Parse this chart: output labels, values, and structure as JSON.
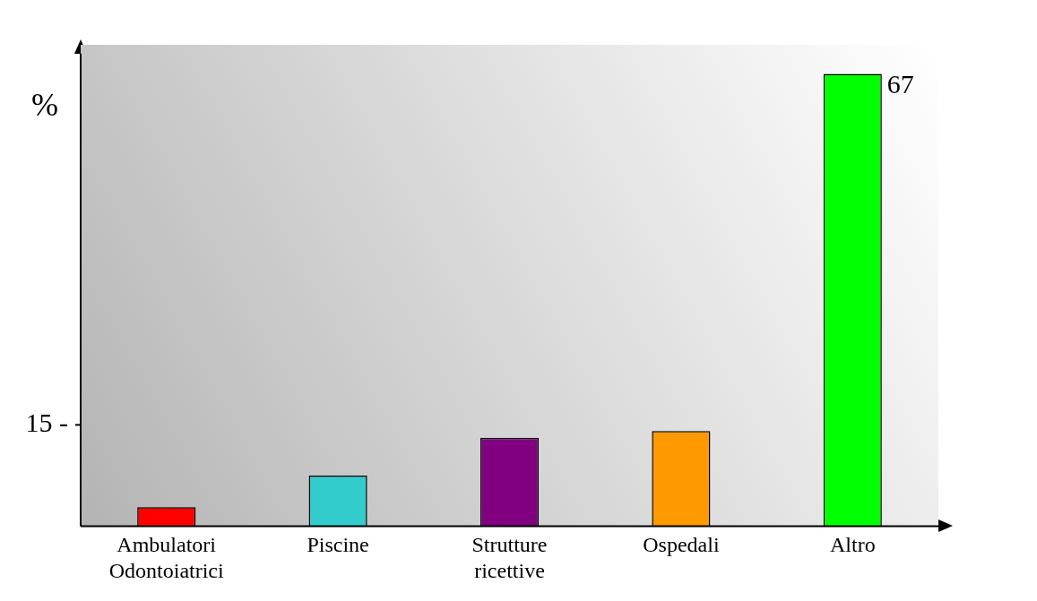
{
  "chart_data": {
    "type": "bar",
    "ylabel": "%",
    "categories": [
      "Ambulatori Odontoiatrici",
      "Piscine",
      "Strutture ricettive",
      "Ospedali",
      "Altro"
    ],
    "values": [
      2.8,
      7.5,
      13.1,
      14.1,
      67
    ],
    "colors": [
      "#ff0000",
      "#33cccc",
      "#800080",
      "#ff9900",
      "#00ff00"
    ],
    "value_labels": [
      null,
      null,
      null,
      null,
      "67"
    ],
    "ylim": [
      0,
      70
    ],
    "yticks": [
      {
        "value": 15,
        "label": "15 -"
      }
    ],
    "grid": false,
    "legend": false
  }
}
